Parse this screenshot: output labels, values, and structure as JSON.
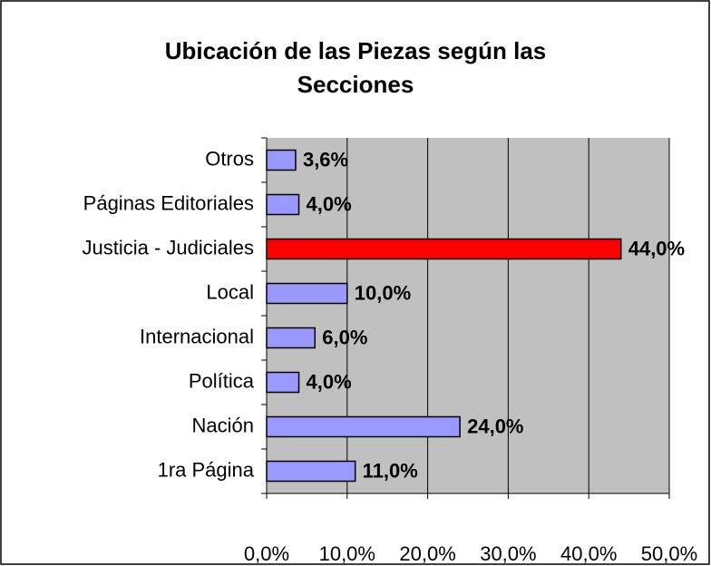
{
  "chart_data": {
    "type": "bar",
    "orientation": "horizontal",
    "title": "Ubicación de las Piezas según las Secciones",
    "categories": [
      "Otros",
      "Páginas Editoriales",
      "Justicia - Judiciales",
      "Local",
      "Internacional",
      "Política",
      "Nación",
      "1ra Página"
    ],
    "values": [
      3.6,
      4.0,
      44.0,
      10.0,
      6.0,
      4.0,
      24.0,
      11.0
    ],
    "value_labels": [
      "3,6%",
      "4,0%",
      "44,0%",
      "10,0%",
      "6,0%",
      "4,0%",
      "24,0%",
      "11,0%"
    ],
    "colors": [
      "#9999ff",
      "#9999ff",
      "#ff0000",
      "#9999ff",
      "#9999ff",
      "#9999ff",
      "#9999ff",
      "#9999ff"
    ],
    "xlim": [
      0,
      50
    ],
    "xticks": [
      {
        "value": 0,
        "label": "0,0%"
      },
      {
        "value": 10,
        "label": "10,0%"
      },
      {
        "value": 20,
        "label": "20,0%"
      },
      {
        "value": 30,
        "label": "30,0%"
      },
      {
        "value": 40,
        "label": "40,0%"
      },
      {
        "value": 50,
        "label": "50,0%"
      }
    ],
    "grid": true
  }
}
